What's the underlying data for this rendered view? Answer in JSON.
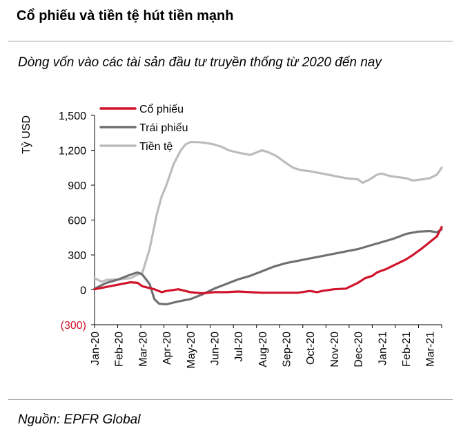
{
  "header": {
    "title": "Cổ phiếu và tiền tệ hút tiền mạnh",
    "subtitle": "Dòng vốn vào các tài sản đầu tư truyền thống từ 2020 đến nay",
    "source": "Nguồn: EPFR Global"
  },
  "chart_data": {
    "type": "line",
    "title": "Dòng vốn vào các tài sản đầu tư truyền thống từ 2020 đến nay",
    "ylabel": "Tỷ USD",
    "xlabel": "",
    "ylim": [
      -300,
      1500
    ],
    "yticks": [
      {
        "value": 1500,
        "label": "1,500"
      },
      {
        "value": 1200,
        "label": "1,200"
      },
      {
        "value": 900,
        "label": "900"
      },
      {
        "value": 600,
        "label": "600"
      },
      {
        "value": 300,
        "label": "300"
      },
      {
        "value": 0,
        "label": "0"
      },
      {
        "value": -300,
        "label": "(300)"
      }
    ],
    "xlim": [
      0,
      14.5
    ],
    "categories": [
      "Jan-20",
      "Feb-20",
      "Mar-20",
      "Apr-20",
      "May-20",
      "Jun-20",
      "Jul-20",
      "Aug-20",
      "Sep-20",
      "Oct-20",
      "Nov-20",
      "Dec-20",
      "Jan-21",
      "Feb-21",
      "Mar-21"
    ],
    "series": [
      {
        "name": "Cổ phiếu",
        "color": "#d0142c",
        "x": [
          0,
          0.5,
          1,
          1.5,
          1.8,
          2,
          2.3,
          2.5,
          2.8,
          3,
          3.5,
          4,
          4.5,
          5,
          5.5,
          6,
          6.5,
          7,
          7.5,
          8,
          8.5,
          9,
          9.3,
          9.5,
          10,
          10.5,
          11,
          11.3,
          11.6,
          11.8,
          12.2,
          12.5,
          13,
          13.3,
          13.7,
          14,
          14.3,
          14.5
        ],
        "values": [
          5,
          25,
          45,
          65,
          60,
          30,
          15,
          5,
          -20,
          -10,
          5,
          -20,
          -30,
          -20,
          -20,
          -15,
          -20,
          -25,
          -25,
          -25,
          -25,
          -10,
          -20,
          -10,
          5,
          10,
          60,
          100,
          120,
          150,
          180,
          210,
          260,
          300,
          360,
          410,
          460,
          540
        ]
      },
      {
        "name": "Trái phiếu",
        "color": "#707070",
        "x": [
          0,
          0.5,
          1,
          1.5,
          1.8,
          2,
          2.3,
          2.5,
          2.7,
          3,
          3.5,
          4,
          4.5,
          5,
          5.5,
          6,
          6.5,
          7,
          7.5,
          8,
          8.5,
          9,
          9.5,
          10,
          10.5,
          11,
          11.5,
          12,
          12.5,
          13,
          13.5,
          14,
          14.3,
          14.5
        ],
        "values": [
          10,
          60,
          90,
          130,
          150,
          130,
          50,
          -80,
          -120,
          -125,
          -100,
          -80,
          -40,
          10,
          50,
          90,
          120,
          160,
          200,
          230,
          250,
          270,
          290,
          310,
          330,
          350,
          380,
          410,
          440,
          480,
          500,
          505,
          495,
          520
        ]
      },
      {
        "name": "Tiền tệ",
        "color": "#bcbcbc",
        "x": [
          0,
          0.3,
          0.5,
          1,
          1.5,
          2,
          2.3,
          2.6,
          2.8,
          3,
          3.3,
          3.6,
          3.8,
          4,
          4.3,
          4.6,
          5,
          5.3,
          5.6,
          6,
          6.5,
          7,
          7.3,
          7.6,
          7.8,
          8,
          8.3,
          8.6,
          9,
          9.5,
          10,
          10.5,
          11,
          11.2,
          11.5,
          11.8,
          12,
          12.3,
          12.6,
          13,
          13.3,
          13.7,
          14,
          14.3,
          14.5
        ],
        "values": [
          100,
          70,
          85,
          90,
          100,
          150,
          350,
          650,
          800,
          900,
          1080,
          1200,
          1250,
          1270,
          1270,
          1265,
          1250,
          1230,
          1200,
          1180,
          1160,
          1200,
          1180,
          1150,
          1120,
          1090,
          1050,
          1030,
          1020,
          1000,
          980,
          960,
          950,
          920,
          950,
          990,
          1000,
          980,
          970,
          960,
          940,
          950,
          960,
          990,
          1050
        ]
      }
    ],
    "legend": {
      "position": "top-left"
    }
  }
}
